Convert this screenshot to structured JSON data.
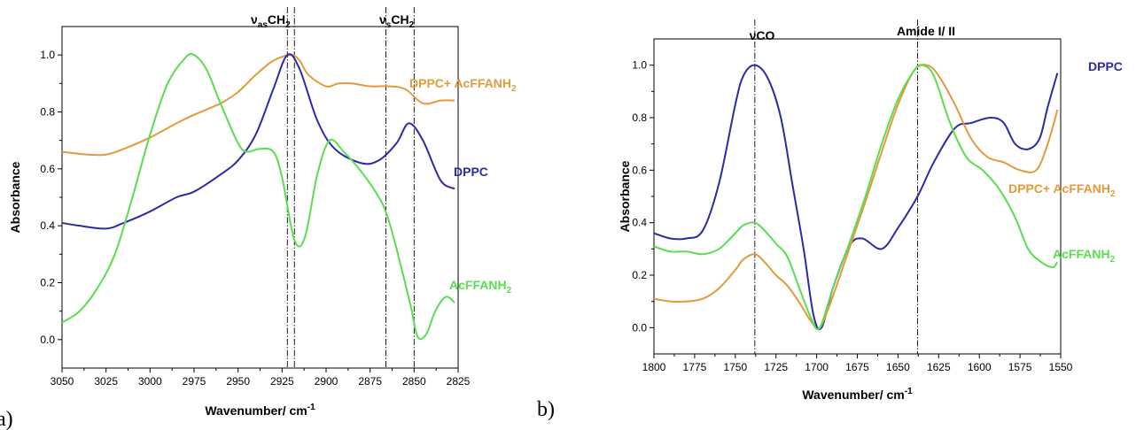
{
  "colors": {
    "DPPC": "#2b2ba8",
    "DPPC+AcFFANH2": "#e39a3c",
    "AcFFANH2": "#59de4f"
  },
  "chart_data": [
    {
      "panel": "a)",
      "type": "line",
      "xlabel_main": "Wavenumber/ cm",
      "xlabel_sup": "-1",
      "ylabel": "Absorbance",
      "xlim": [
        3050,
        2825
      ],
      "ylim": [
        -0.1,
        1.1
      ],
      "x_ticks": [
        3050,
        3025,
        3000,
        2975,
        2950,
        2925,
        2900,
        2875,
        2850,
        2825
      ],
      "x_tick_labels": [
        "3050",
        "3025",
        "3000",
        "2975",
        "2950",
        "2925",
        "2900",
        "2875",
        "2850",
        "2825"
      ],
      "y_ticks": [
        0.0,
        0.2,
        0.4,
        0.6,
        0.8,
        1.0
      ],
      "y_tick_labels": [
        "0.0",
        "0.2",
        "0.4",
        "0.6",
        "0.8",
        "1.0"
      ],
      "reference_lines": [
        {
          "x": 2918,
          "label": ""
        },
        {
          "x": 2922,
          "label": "ν_as CH_2",
          "label_base": "ν",
          "label_sub": "as",
          "label_main": "CH",
          "label_sub2": "2"
        },
        {
          "x": 2866,
          "label": "ν_s CH_2",
          "label_base": "ν",
          "label_sub": "s",
          "label_main": "CH",
          "label_sub2": "2"
        },
        {
          "x": 2850,
          "label": ""
        }
      ],
      "series": [
        {
          "name": "DPPC+ AcFFANH2",
          "label_main": "DPPC+ AcFFANH",
          "label_sub": "2",
          "color_key": "DPPC+AcFFANH2",
          "label_at": [
            2822,
            0.84
          ],
          "x": [
            3050,
            3035,
            3025,
            3015,
            3000,
            2985,
            2975,
            2960,
            2950,
            2940,
            2930,
            2920,
            2915,
            2910,
            2900,
            2893,
            2885,
            2875,
            2865,
            2855,
            2845,
            2835,
            2827
          ],
          "y": [
            0.66,
            0.65,
            0.65,
            0.67,
            0.71,
            0.76,
            0.79,
            0.83,
            0.87,
            0.93,
            0.98,
            1.0,
            0.98,
            0.93,
            0.89,
            0.9,
            0.9,
            0.89,
            0.89,
            0.88,
            0.83,
            0.84,
            0.84
          ]
        },
        {
          "name": "DPPC",
          "label_main": "DPPC",
          "label_sub": "",
          "color_key": "DPPC",
          "label_at": [
            2845,
            0.58
          ],
          "x": [
            3050,
            3040,
            3025,
            3015,
            3000,
            2985,
            2975,
            2960,
            2950,
            2940,
            2930,
            2922,
            2915,
            2905,
            2895,
            2880,
            2870,
            2860,
            2853,
            2845,
            2835,
            2827
          ],
          "y": [
            0.41,
            0.4,
            0.39,
            0.41,
            0.45,
            0.5,
            0.52,
            0.58,
            0.63,
            0.72,
            0.88,
            1.0,
            0.95,
            0.77,
            0.67,
            0.62,
            0.63,
            0.69,
            0.76,
            0.7,
            0.56,
            0.53
          ]
        },
        {
          "name": "AcFFANH2",
          "label_main": "AcFFANH",
          "label_sub": "2",
          "color_key": "AcFFANH2",
          "label_at": [
            2845,
            0.35
          ],
          "x": [
            3050,
            3040,
            3030,
            3020,
            3010,
            3000,
            2990,
            2980,
            2975,
            2968,
            2960,
            2950,
            2945,
            2938,
            2930,
            2925,
            2918,
            2912,
            2905,
            2898,
            2890,
            2880,
            2870,
            2865,
            2860,
            2852,
            2848,
            2843,
            2838,
            2832,
            2827
          ],
          "y": [
            0.06,
            0.1,
            0.18,
            0.3,
            0.5,
            0.72,
            0.9,
            0.99,
            1.0,
            0.95,
            0.83,
            0.69,
            0.66,
            0.67,
            0.66,
            0.57,
            0.35,
            0.36,
            0.58,
            0.7,
            0.66,
            0.59,
            0.5,
            0.43,
            0.32,
            0.12,
            0.01,
            0.02,
            0.1,
            0.15,
            0.13
          ]
        }
      ]
    },
    {
      "panel": "b)",
      "type": "line",
      "xlabel_main": "Wavenumber/ cm",
      "xlabel_sup": "-1",
      "ylabel": "Absorbance",
      "xlim": [
        1800,
        1550
      ],
      "ylim": [
        -0.1,
        1.1
      ],
      "x_ticks": [
        1800,
        1775,
        1750,
        1725,
        1700,
        1675,
        1650,
        1625,
        1600,
        1575,
        1550
      ],
      "x_tick_labels": [
        "1800",
        "1775",
        "1750",
        "1725",
        "1700",
        "1675",
        "1650",
        "1625",
        "1600",
        "1575",
        "1550"
      ],
      "y_ticks": [
        0.0,
        0.2,
        0.4,
        0.6,
        0.8,
        1.0
      ],
      "y_tick_labels": [
        "0.0",
        "0.2",
        "0.4",
        "0.6",
        "0.8",
        "1.0"
      ],
      "reference_lines": [
        {
          "x": 1738,
          "label": "νCO"
        },
        {
          "x": 1638,
          "label": "Amide I/ II"
        }
      ],
      "series": [
        {
          "name": "DPPC",
          "label_main": "DPPC",
          "label_sub": "",
          "color_key": "DPPC",
          "label_at": [
            1560,
            1.03
          ],
          "x": [
            1800,
            1790,
            1780,
            1770,
            1760,
            1750,
            1745,
            1738,
            1730,
            1722,
            1715,
            1708,
            1702,
            1697,
            1690,
            1680,
            1672,
            1660,
            1650,
            1638,
            1628,
            1615,
            1605,
            1593,
            1585,
            1578,
            1570,
            1563,
            1558,
            1552
          ],
          "y": [
            0.36,
            0.34,
            0.34,
            0.37,
            0.55,
            0.85,
            0.96,
            1.0,
            0.95,
            0.8,
            0.55,
            0.3,
            0.05,
            0.0,
            0.15,
            0.31,
            0.34,
            0.3,
            0.38,
            0.5,
            0.63,
            0.76,
            0.78,
            0.8,
            0.78,
            0.7,
            0.68,
            0.72,
            0.84,
            0.97
          ]
        },
        {
          "name": "DPPC+ AcFFANH2",
          "label_main": "DPPC+ AcFFANH",
          "label_sub": "2",
          "color_key": "DPPC+AcFFANH2",
          "label_at": [
            1580,
            0.6
          ],
          "x": [
            1800,
            1790,
            1780,
            1770,
            1760,
            1750,
            1745,
            1738,
            1732,
            1725,
            1718,
            1710,
            1703,
            1698,
            1690,
            1680,
            1670,
            1660,
            1650,
            1640,
            1632,
            1625,
            1615,
            1605,
            1595,
            1585,
            1575,
            1565,
            1558,
            1552
          ],
          "y": [
            0.11,
            0.1,
            0.1,
            0.11,
            0.15,
            0.22,
            0.26,
            0.28,
            0.25,
            0.2,
            0.16,
            0.09,
            0.02,
            0.0,
            0.12,
            0.3,
            0.48,
            0.67,
            0.85,
            0.98,
            1.0,
            0.96,
            0.85,
            0.72,
            0.65,
            0.63,
            0.6,
            0.6,
            0.7,
            0.83
          ]
        },
        {
          "name": "AcFFANH2",
          "label_main": "AcFFANH",
          "label_sub": "2",
          "color_key": "AcFFANH2",
          "label_at": [
            1590,
            0.26
          ],
          "x": [
            1800,
            1790,
            1780,
            1770,
            1760,
            1750,
            1745,
            1738,
            1732,
            1725,
            1718,
            1710,
            1703,
            1698,
            1690,
            1680,
            1670,
            1660,
            1650,
            1640,
            1635,
            1628,
            1618,
            1608,
            1598,
            1588,
            1578,
            1570,
            1562,
            1555,
            1552
          ],
          "y": [
            0.31,
            0.29,
            0.29,
            0.28,
            0.3,
            0.36,
            0.39,
            0.4,
            0.37,
            0.32,
            0.27,
            0.14,
            0.03,
            0.0,
            0.15,
            0.32,
            0.5,
            0.7,
            0.87,
            0.98,
            1.0,
            0.96,
            0.78,
            0.65,
            0.6,
            0.53,
            0.42,
            0.3,
            0.25,
            0.23,
            0.25
          ]
        }
      ]
    }
  ]
}
